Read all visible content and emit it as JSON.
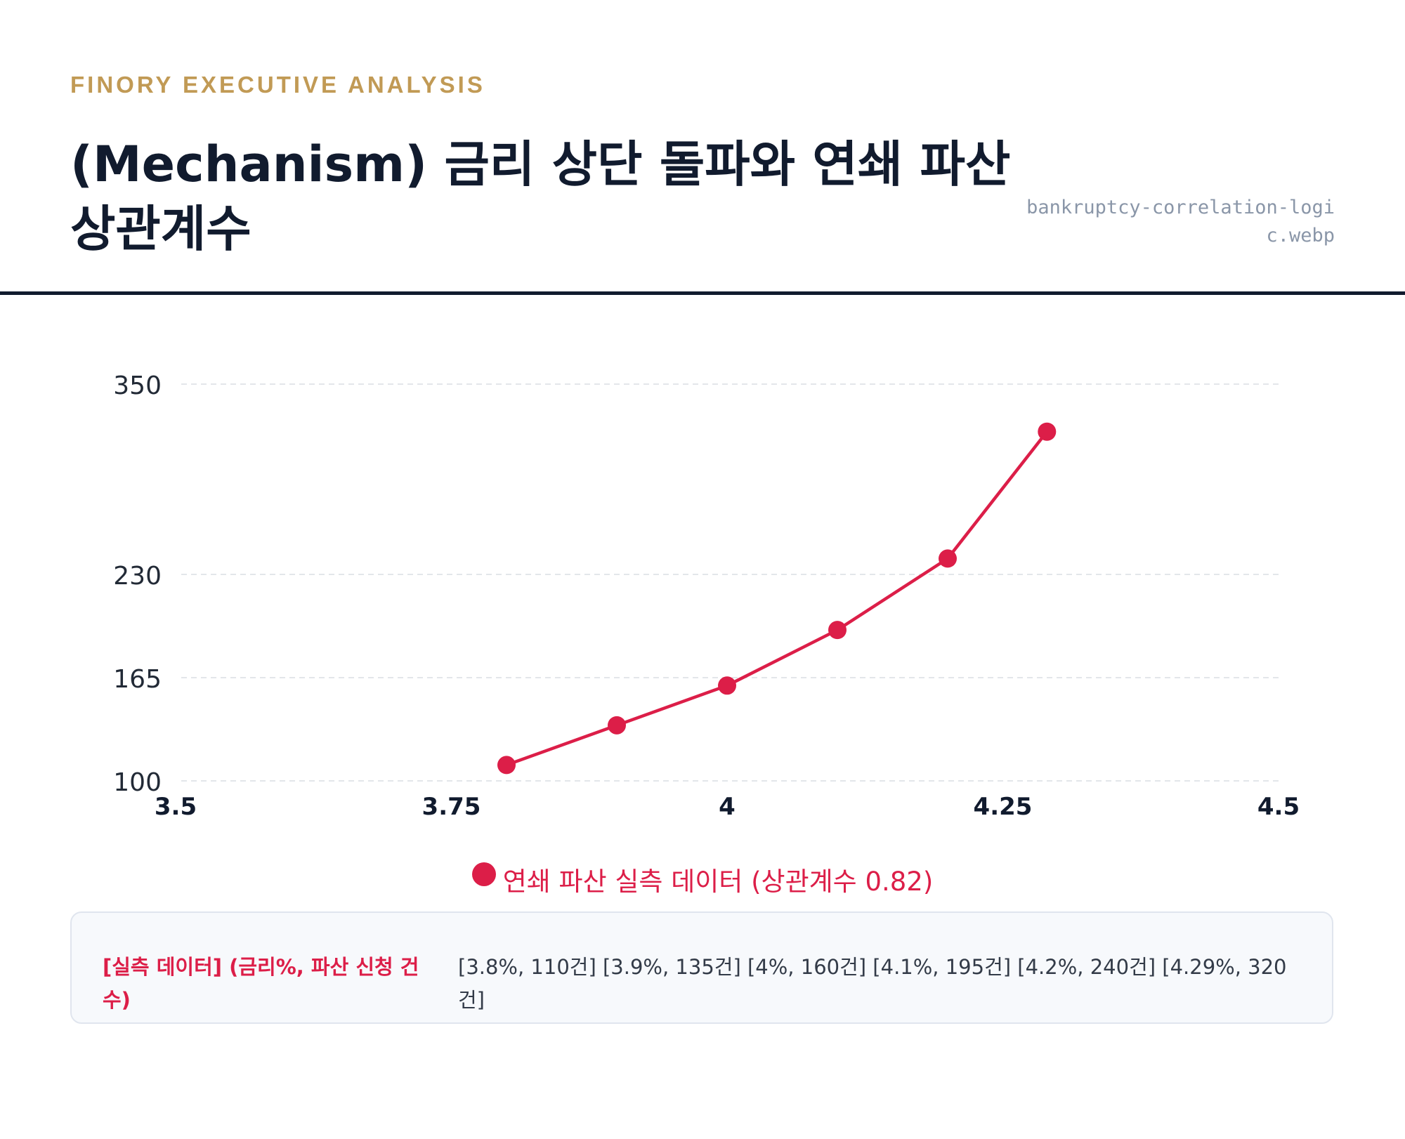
{
  "header": {
    "eyebrow": "FINORY EXECUTIVE ANALYSIS",
    "title": "(Mechanism) 금리 상단 돌파와 연쇄 파산 상관계수",
    "filename": "bankruptcy-correlation-logic.webp"
  },
  "colors": {
    "accent_gold": "#c19a55",
    "series": "#dc1e48",
    "title": "#111b2e"
  },
  "chart_data": {
    "type": "line",
    "x_ticks": [
      3.5,
      3.75,
      4,
      4.25,
      4.5
    ],
    "x_tick_labels": [
      "3.5",
      "3.75",
      "4",
      "4.25",
      "4.5"
    ],
    "y_ticks": [
      100,
      165,
      230,
      350
    ],
    "y_tick_labels": [
      "100",
      "165",
      "230",
      "350"
    ],
    "xlim": [
      3.5,
      4.5
    ],
    "ylim": [
      100,
      350
    ],
    "grid": "horizontal-dashed",
    "legend_position": "bottom",
    "series": [
      {
        "name": "연쇄 파산 실측 데이터 (상관계수 0.82)",
        "color": "#dc1e48",
        "x": [
          3.8,
          3.9,
          4.0,
          4.1,
          4.2,
          4.29
        ],
        "y": [
          110,
          135,
          160,
          195,
          240,
          320
        ]
      }
    ]
  },
  "data_box": {
    "label": "[실측 데이터] (금리%, 파산 신청 건수)",
    "values": "[3.8%, 110건] [3.9%, 135건] [4%, 160건] [4.1%, 195건] [4.2%, 240건] [4.29%, 320건]"
  }
}
